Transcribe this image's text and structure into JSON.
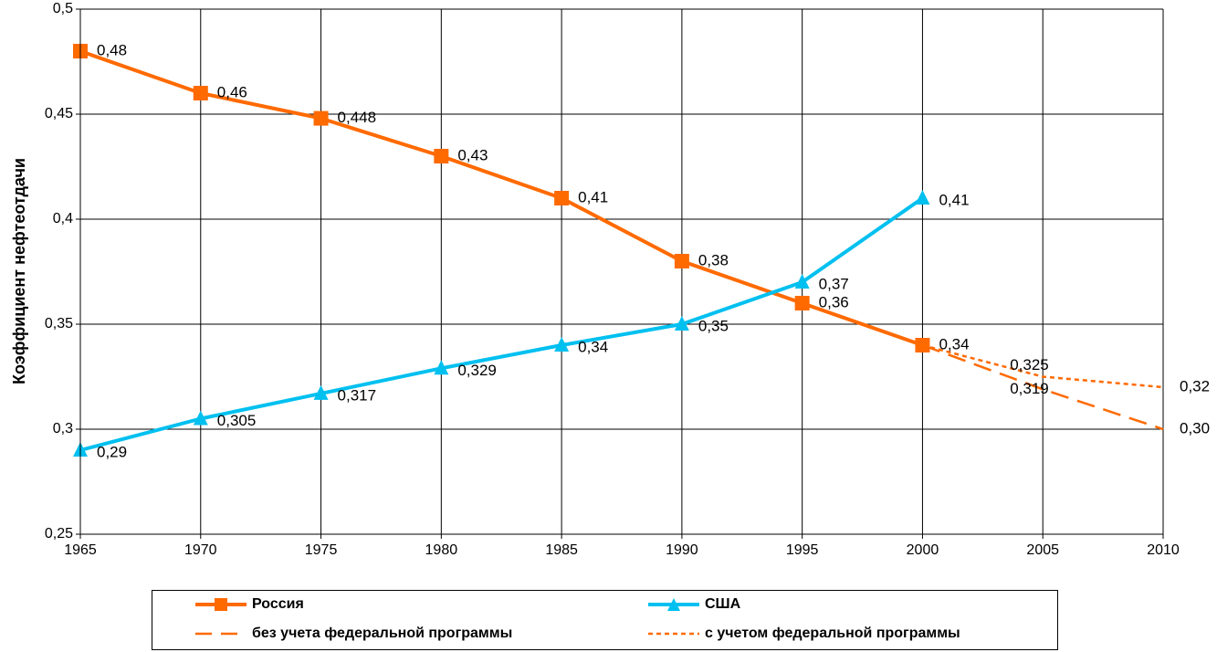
{
  "chart_data": {
    "type": "line",
    "ylabel": "Коэффициент нефтеотдачи",
    "xlabel": "",
    "title": "",
    "x_ticks": [
      "1965",
      "1970",
      "1975",
      "1980",
      "1985",
      "1990",
      "1995",
      "2000",
      "2005",
      "2010"
    ],
    "y_ticks": [
      "0,25",
      "0,3",
      "0,35",
      "0,4",
      "0,45",
      "0,5"
    ],
    "xlim": [
      1965,
      2010
    ],
    "ylim": [
      0.25,
      0.5
    ],
    "grid": true,
    "legend_position": "bottom",
    "series": [
      {
        "name": "Россия",
        "color": "#ff6a00",
        "style": "solid",
        "marker": "square",
        "x": [
          1965,
          1970,
          1975,
          1980,
          1985,
          1990,
          1995,
          2000
        ],
        "y": [
          0.48,
          0.46,
          0.448,
          0.43,
          0.41,
          0.38,
          0.36,
          0.34
        ],
        "labels": [
          "0,48",
          "0,46",
          "0,448",
          "0,43",
          "0,41",
          "0,38",
          "0,36",
          "0,34"
        ]
      },
      {
        "name": "США",
        "color": "#00c0f0",
        "style": "solid",
        "marker": "triangle",
        "x": [
          1965,
          1970,
          1975,
          1980,
          1985,
          1990,
          1995,
          2000
        ],
        "y": [
          0.29,
          0.305,
          0.317,
          0.329,
          0.34,
          0.35,
          0.37,
          0.41
        ],
        "labels": [
          "0,29",
          "0,305",
          "0,317",
          "0,329",
          "0,34",
          "0,35",
          "0,37",
          "0,41"
        ]
      },
      {
        "name": "без учета федеральной программы",
        "color": "#ff6a00",
        "style": "long-dash",
        "marker": "none",
        "x": [
          2000,
          2005,
          2010
        ],
        "y": [
          0.34,
          0.319,
          0.3
        ],
        "labels": [
          "",
          "0,319",
          "0,30"
        ]
      },
      {
        "name": "с учетом федеральной программы",
        "color": "#ff6a00",
        "style": "short-dash",
        "marker": "none",
        "x": [
          2000,
          2005,
          2010
        ],
        "y": [
          0.34,
          0.325,
          0.32
        ],
        "labels": [
          "",
          "0,325",
          "0,32"
        ]
      }
    ]
  }
}
